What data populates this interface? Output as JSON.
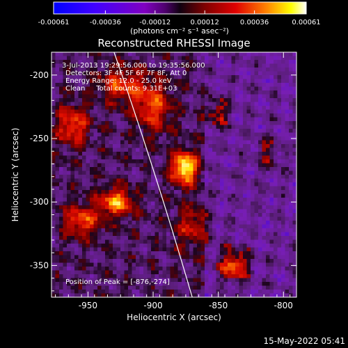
{
  "chart_data": {
    "type": "heatmap",
    "title": "Reconstructed RHESSI Image",
    "xlabel": "Heliocentric X (arcsec)",
    "ylabel": "Heliocentric Y (arcsec)",
    "xlim": [
      -978,
      -790
    ],
    "ylim": [
      -375,
      -182
    ],
    "x_ticks": [
      -950,
      -900,
      -850,
      -800
    ],
    "x_tick_labels": [
      "-950",
      "-900",
      "-850",
      "-800"
    ],
    "y_ticks": [
      -200,
      -250,
      -300,
      -350
    ],
    "y_tick_labels": [
      "-200",
      "-250",
      "-300",
      "-350"
    ],
    "colorbar": {
      "range": [
        -0.00061,
        0.00061
      ],
      "ticks": [
        -0.00061,
        -0.00036,
        -0.00012,
        0.00012,
        0.00036,
        0.00061
      ],
      "tick_labels": [
        "-0.00061",
        "-0.00036",
        "-0.00012",
        "0.00012",
        "0.00036",
        "0.00061"
      ],
      "unit_label": "(photons cm⁻² s⁻¹ asec⁻²)"
    },
    "peak": {
      "x": -876,
      "y": -274
    },
    "sources": [
      {
        "x": -876,
        "y": -273,
        "sx": 7,
        "sy": 9,
        "amp": 1.0
      },
      {
        "x": -900,
        "y": -225,
        "sx": 10,
        "sy": 14,
        "amp": 0.55
      },
      {
        "x": -928,
        "y": -300,
        "sx": 9,
        "sy": 8,
        "amp": 0.7
      },
      {
        "x": -955,
        "y": -315,
        "sx": 10,
        "sy": 9,
        "amp": 0.55
      },
      {
        "x": -962,
        "y": -240,
        "sx": 9,
        "sy": 11,
        "amp": 0.55
      },
      {
        "x": -925,
        "y": -208,
        "sx": 12,
        "sy": 10,
        "amp": 0.5
      },
      {
        "x": -838,
        "y": -350,
        "sx": 8,
        "sy": 9,
        "amp": 0.6
      },
      {
        "x": -850,
        "y": -230,
        "sx": 6,
        "sy": 9,
        "amp": 0.4
      },
      {
        "x": -870,
        "y": -320,
        "sx": 9,
        "sy": 12,
        "amp": 0.4
      },
      {
        "x": -812,
        "y": -262,
        "sx": 6,
        "sy": 8,
        "amp": 0.3
      }
    ],
    "limb_points": [
      [
        -930,
        -182
      ],
      [
        -900,
        -270
      ],
      [
        -870,
        -375
      ]
    ]
  },
  "annotations": {
    "time_range": "3-Jul-2013 19:29:56.000 to 19:35:56.000",
    "detectors": "Detectors: 3F 4F 5F 6F 7F 8F, Att 0",
    "energy_range": "Energy Range: 12.0 - 25.0 keV",
    "clean_totals": "Clean     Total counts: 9.31E+03",
    "peak_position": "Position of Peak = [-876,-274]"
  },
  "footer": {
    "date_stamp": "15-May-2022 05:41"
  }
}
